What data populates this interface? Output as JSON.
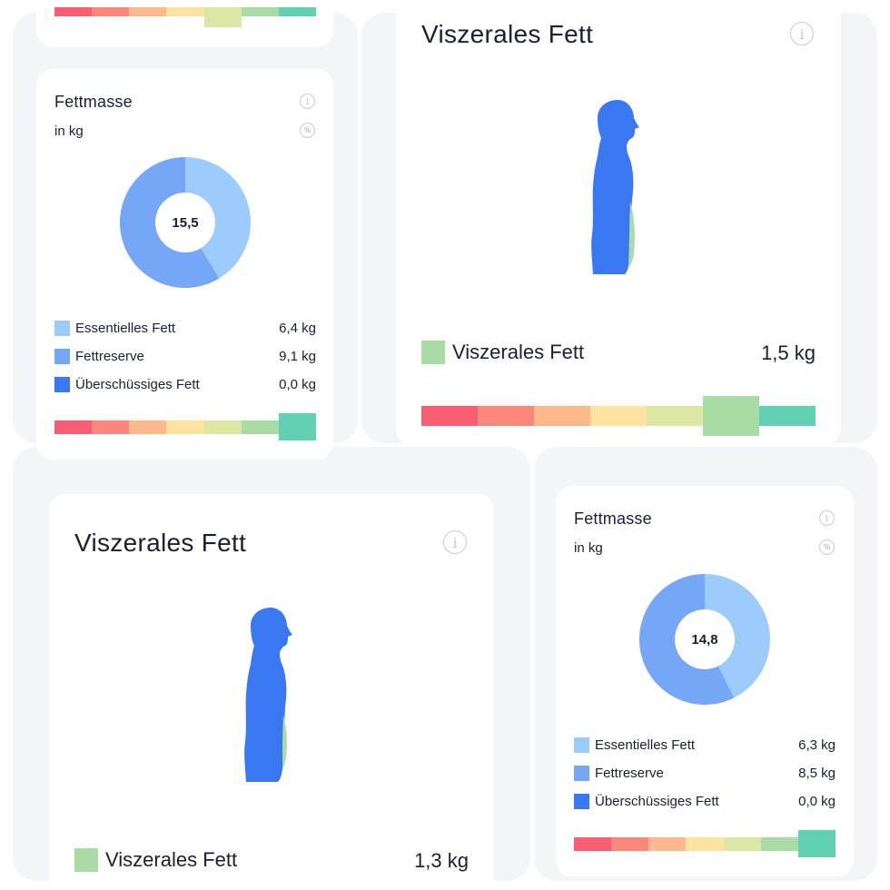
{
  "colors": {
    "essential": "#9ccbfd",
    "reserve": "#76a6f6",
    "excess": "#3a78f2",
    "scale": [
      "#f85d73",
      "#fb877a",
      "#fdb98b",
      "#fde49e",
      "#dce6a5",
      "#a9dba5",
      "#62d1b3"
    ]
  },
  "top_left_card": {
    "scale_active_index": 4
  },
  "fettmasse_1": {
    "title": "Fettmasse",
    "unit": "in kg",
    "total": "15,5",
    "legend": [
      {
        "label": "Essentielles Fett",
        "value": "6,4 kg",
        "fraction": 0.413
      },
      {
        "label": "Fettreserve",
        "value": "9,1 kg",
        "fraction": 0.587
      },
      {
        "label": "Überschüssiges Fett",
        "value": "0,0 kg",
        "fraction": 0.0
      }
    ],
    "scale_active_index": 6
  },
  "viszeral_1": {
    "title": "Viszerales Fett",
    "legend_label": "Viszerales Fett",
    "value": "1,5 kg",
    "scale_active_index": 5
  },
  "viszeral_2": {
    "title": "Viszerales Fett",
    "legend_label": "Viszerales Fett",
    "value": "1,3 kg"
  },
  "fettmasse_2": {
    "title": "Fettmasse",
    "unit": "in kg",
    "total": "14,8",
    "legend": [
      {
        "label": "Essentielles Fett",
        "value": "6,3 kg",
        "fraction": 0.426
      },
      {
        "label": "Fettreserve",
        "value": "8,5 kg",
        "fraction": 0.574
      },
      {
        "label": "Überschüssiges Fett",
        "value": "0,0 kg",
        "fraction": 0.0
      }
    ],
    "scale_active_index": 6
  },
  "icons": {
    "info": "info-icon",
    "percent": "percent-icon",
    "body": "body-silhouette-icon"
  }
}
